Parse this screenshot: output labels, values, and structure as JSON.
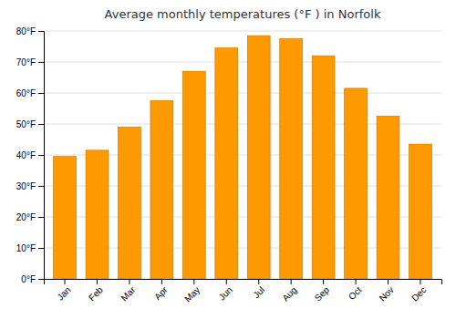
{
  "chart_data": {
    "type": "bar",
    "title": "Average monthly temperatures (°F ) in Norfolk",
    "categories": [
      "Jan",
      "Feb",
      "Mar",
      "Apr",
      "May",
      "Jun",
      "Jul",
      "Aug",
      "Sep",
      "Oct",
      "Nov",
      "Dec"
    ],
    "values": [
      39.5,
      41.5,
      49.0,
      57.5,
      67.0,
      74.5,
      78.5,
      77.5,
      72.0,
      61.5,
      52.5,
      43.5
    ],
    "color": "#FF9900",
    "ylim": [
      0,
      80
    ],
    "yticks": [
      {
        "value": 0,
        "label": "0°F"
      },
      {
        "value": 10,
        "label": "10°F"
      },
      {
        "value": 20,
        "label": "20°F"
      },
      {
        "value": 30,
        "label": "30°F"
      },
      {
        "value": 40,
        "label": "40°F"
      },
      {
        "value": 50,
        "label": "50°F"
      },
      {
        "value": 60,
        "label": "60°F"
      },
      {
        "value": 70,
        "label": "70°F"
      },
      {
        "value": 80,
        "label": "80°F"
      }
    ],
    "grid": true
  }
}
